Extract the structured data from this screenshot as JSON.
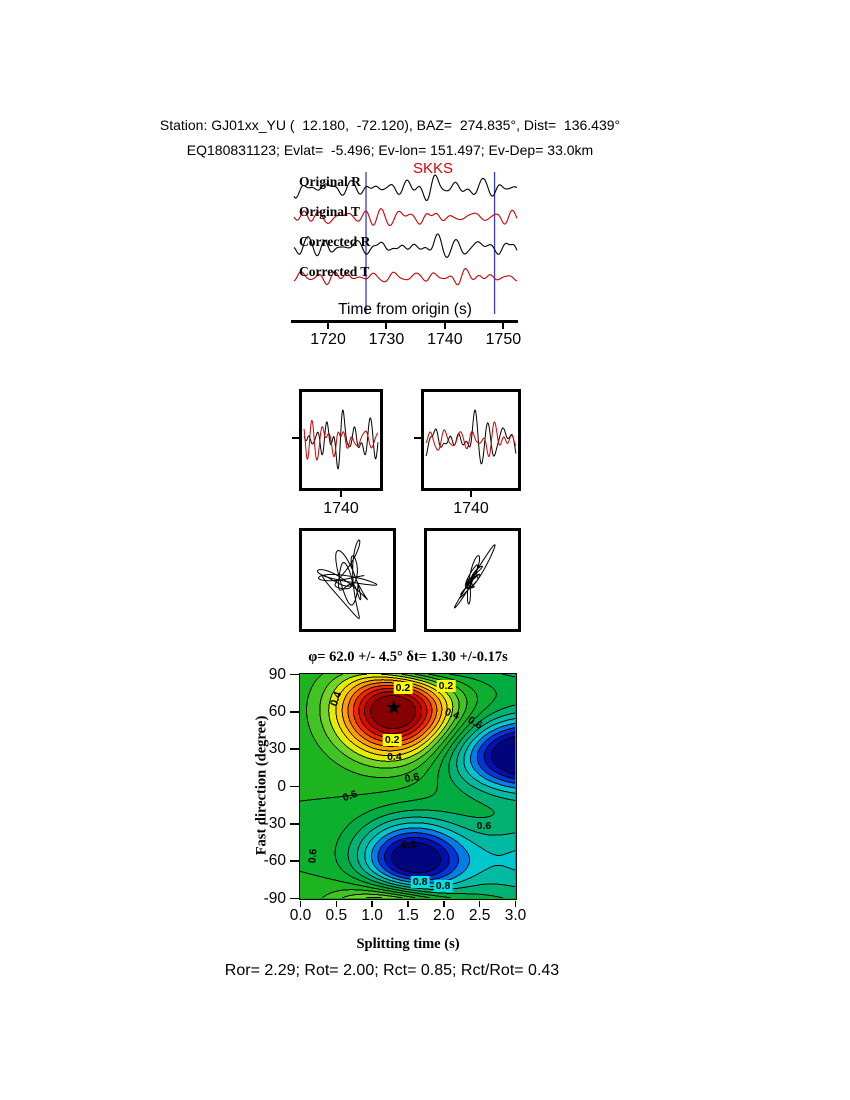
{
  "header": {
    "line1": "Station: GJ01xx_YU (  12.180,  -72.120), BAZ=  274.835°, Dist=  136.439°",
    "line2": "EQ180831123; Evlat=  -5.496; Ev-lon= 151.497; Ev-Dep= 33.0km"
  },
  "phase_label": {
    "text": "SKKS",
    "color": "#dd0000"
  },
  "seismogram": {
    "trace_labels": [
      "Original R",
      "Original T",
      "Corrected R",
      "Corrected T"
    ],
    "trace_colors": [
      "#000000",
      "#cc0000",
      "#000000",
      "#cc0000"
    ],
    "axis_label": "Time from origin (s)",
    "ticks": [
      "1720",
      "1730",
      "1740",
      "1750"
    ],
    "tick_values": [
      1720,
      1730,
      1740,
      1750
    ],
    "time_range": [
      1714,
      1752
    ],
    "window": [
      1726.5,
      1748.5
    ],
    "window_color": "#3c3cc0"
  },
  "zoom_panels": {
    "ticks": [
      "1740",
      "1740"
    ]
  },
  "contour": {
    "title": "φ= 62.0 +/- 4.5° δt= 1.30 +/-0.17s",
    "xlabel": "Splitting time (s)",
    "ylabel": "Fast direction (degree)",
    "x_ticks": [
      "0.0",
      "0.5",
      "1.0",
      "1.5",
      "2.0",
      "2.5",
      "3.0"
    ],
    "x_tick_values": [
      0,
      0.5,
      1,
      1.5,
      2,
      2.5,
      3
    ],
    "y_ticks": [
      "90",
      "60",
      "30",
      "0",
      "-30",
      "-60",
      "-90"
    ],
    "y_tick_values": [
      90,
      60,
      30,
      0,
      -30,
      -60,
      -90
    ],
    "x_range": [
      0,
      3
    ],
    "y_range": [
      -90,
      90
    ],
    "star": {
      "dt": 1.3,
      "phi": 62,
      "glyph": "★"
    },
    "annotations": [
      {
        "text": "0.2",
        "dt": 1.43,
        "phi": 79,
        "bg": "#ffff00"
      },
      {
        "text": "0.2",
        "dt": 2.03,
        "phi": 81,
        "bg": "#ffff00"
      },
      {
        "text": "0.2",
        "dt": 1.28,
        "phi": 37,
        "bg": "#ffff00"
      },
      {
        "text": "0.4",
        "dt": 0.5,
        "phi": 70,
        "rot": -70
      },
      {
        "text": "0.4",
        "dt": 2.11,
        "phi": 58,
        "rot": 20
      },
      {
        "text": "0.6",
        "dt": 2.44,
        "phi": 51,
        "rot": 30
      },
      {
        "text": "0.4",
        "dt": 1.31,
        "phi": 24
      },
      {
        "text": "0.6",
        "dt": 1.56,
        "phi": 7,
        "rot": -10
      },
      {
        "text": "0.6",
        "dt": 0.69,
        "phi": -8,
        "rot": -20
      },
      {
        "text": "0.6",
        "dt": 2.56,
        "phi": -32
      },
      {
        "text": "0.8",
        "dt": 1.51,
        "phi": -47
      },
      {
        "text": "0.6",
        "dt": 0.18,
        "phi": -56,
        "rot": -85
      },
      {
        "text": "0.8",
        "dt": 1.67,
        "phi": -77,
        "bg": "#00e0e0"
      },
      {
        "text": "0.8",
        "dt": 1.99,
        "phi": -80,
        "bg": "#00e0e0"
      }
    ]
  },
  "footer": {
    "text": "Ror= 2.29; Rot= 2.00; Rct= 0.85; Rct/Rot= 0.43"
  },
  "render": {
    "waves": {
      "seeds": {
        "R1": 11,
        "T1": 22,
        "R2": 13,
        "T2": 24
      },
      "pulse_center": 0.63,
      "samples": 360,
      "window_u": [
        0.329,
        0.908
      ]
    },
    "surface": {
      "base": 0.55,
      "step": 0.05,
      "bumps": [
        {
          "amp": -0.62,
          "dt0": 1.32,
          "sdt": 0.55,
          "phi0": 62,
          "sphi": 26
        },
        {
          "amp": 0.5,
          "dt0": 1.55,
          "sdt": 0.52,
          "phi0": -62,
          "sphi": 23
        },
        {
          "amp": 0.55,
          "dt0": 3.25,
          "sdt": 0.75,
          "phi0": 25,
          "sphi": 21
        },
        {
          "amp": 0.22,
          "dt0": 3.4,
          "sdt": 0.9,
          "phi0": -60,
          "sphi": 26
        }
      ],
      "colormap": [
        [
          0.0,
          "#6e0000"
        ],
        [
          0.08,
          "#b80000"
        ],
        [
          0.16,
          "#f01400"
        ],
        [
          0.24,
          "#ff7800"
        ],
        [
          0.31,
          "#ffc800"
        ],
        [
          0.37,
          "#f0f000"
        ],
        [
          0.43,
          "#64d228"
        ],
        [
          0.52,
          "#1eb41e"
        ],
        [
          0.62,
          "#00aa3c"
        ],
        [
          0.7,
          "#00b48c"
        ],
        [
          0.78,
          "#00c8d2"
        ],
        [
          0.84,
          "#0064f0"
        ],
        [
          0.9,
          "#0014c8"
        ],
        [
          1.0,
          "#000064"
        ]
      ]
    }
  },
  "chart_data": [
    {
      "type": "line",
      "id": "waveform-traces",
      "title": "SKKS",
      "xlabel": "Time from origin (s)",
      "xlim": [
        1714,
        1752
      ],
      "x_ticks": [
        1720,
        1730,
        1740,
        1750
      ],
      "series_labels": [
        "Original R",
        "Original T",
        "Corrected R",
        "Corrected T"
      ],
      "series_colors": [
        "black",
        "red",
        "black",
        "red"
      ],
      "selection_window_s": [
        1726.5,
        1748.5
      ],
      "note": "seismogram wiggle amplitudes not resolvable from figure; rendered synthetically"
    },
    {
      "type": "line",
      "id": "windowed-pair-panels",
      "panels": 2,
      "x_ticks": [
        1740,
        1740
      ],
      "series": [
        "R (black)",
        "T (red)"
      ]
    },
    {
      "type": "scatter",
      "id": "particle-motion-panels",
      "panels": [
        "original (elliptical motion)",
        "corrected (linearized diagonal motion)"
      ]
    },
    {
      "type": "heatmap",
      "id": "splitting-misfit-surface",
      "title": "φ= 62.0 +/- 4.5° δt= 1.30 +/-0.17s",
      "xlabel": "Splitting time (s)",
      "ylabel": "Fast direction (degree)",
      "xlim": [
        0,
        3
      ],
      "ylim": [
        -90,
        90
      ],
      "x_ticks": [
        0.0,
        0.5,
        1.0,
        1.5,
        2.0,
        2.5,
        3.0
      ],
      "y_ticks": [
        90,
        60,
        30,
        0,
        -30,
        -60,
        -90
      ],
      "best_fit": {
        "fast_direction_deg": 62.0,
        "fast_direction_err_deg": 4.5,
        "delay_time_s": 1.3,
        "delay_time_err_s": 0.17
      },
      "minimum_marker": {
        "symbol": "star",
        "dt": 1.3,
        "phi": 62
      },
      "contour_annotation_levels": [
        0.2,
        0.4,
        0.6,
        0.8
      ],
      "colormap": "red (minimum) -> orange -> yellow -> green -> cyan -> blue (maximum)"
    },
    {
      "type": "table",
      "id": "quality-ratios",
      "values": {
        "Ror": 2.29,
        "Rot": 2.0,
        "Rct": 0.85,
        "Rct/Rot": 0.43
      }
    }
  ]
}
